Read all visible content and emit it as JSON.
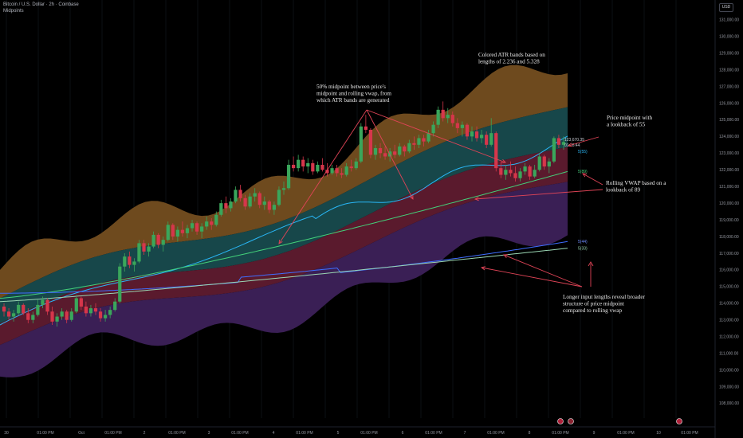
{
  "header": {
    "symbol_line": "Bitcoin / U.S. Dollar · 2h · Coinbase",
    "indicator": "Midpoints"
  },
  "currency": "USD",
  "chart_data": {
    "type": "candlestick",
    "y_ticks": [
      "131,000.00",
      "130,000.00",
      "129,000.00",
      "128,000.00",
      "127,000.00",
      "126,000.00",
      "125,000.00",
      "124,000.00",
      "123,000.00",
      "122,000.00",
      "121,000.00",
      "120,000.00",
      "119,000.00",
      "118,000.00",
      "117,000.00",
      "116,000.00",
      "115,000.00",
      "114,000.00",
      "113,000.00",
      "112,000.00",
      "111,000.00",
      "110,000.00",
      "109,000.00",
      "108,000.00"
    ],
    "ylim": [
      107400,
      131800
    ],
    "x_ticks": [
      "30",
      "01:00 PM",
      "Oct",
      "01:00 PM",
      "2",
      "01:00 PM",
      "3",
      "01:00 PM",
      "4",
      "01:00 PM",
      "5",
      "01:00 PM",
      "6",
      "01:00 PM",
      "7",
      "01:00 PM",
      "8",
      "01:00 PM",
      "9",
      "01:00 PM",
      "10",
      "01:00 PM"
    ],
    "price_labels": {
      "last_price": "123,670.35",
      "countdown": "01:26:44",
      "midpoint_55": "5(55)",
      "vwap_89": "5(89)",
      "midpoint_long": "5(44)",
      "vwap_long": "5(33)"
    },
    "annotations": [
      {
        "lines": [
          "Colored ATR bands based on",
          "lengths of 2.236 and 5.328"
        ]
      },
      {
        "lines": [
          "50% midpoint between price's",
          "midpoint and rolling vwap, from",
          "which ATR bands are generated"
        ]
      },
      {
        "lines": [
          "Price midpoint with",
          "a lookback of 55"
        ]
      },
      {
        "lines": [
          "Rolling VWAP based on a",
          "lookback of 89"
        ]
      },
      {
        "lines": [
          "Longer input lengths reveal broader",
          "structure of price midpoint",
          "compared to rolling vwap"
        ]
      }
    ],
    "candles_ohlc": [
      [
        113800,
        114000,
        113200,
        113500
      ],
      [
        113500,
        113700,
        113000,
        113200
      ],
      [
        113200,
        113600,
        112900,
        113400
      ],
      [
        113400,
        114100,
        113300,
        113900
      ],
      [
        113900,
        114000,
        113300,
        113400
      ],
      [
        113400,
        113700,
        112800,
        113000
      ],
      [
        113000,
        113500,
        112800,
        113300
      ],
      [
        113300,
        114200,
        113200,
        113900
      ],
      [
        113900,
        114400,
        113700,
        114200
      ],
      [
        114200,
        114300,
        113300,
        113500
      ],
      [
        113500,
        113800,
        112700,
        112900
      ],
      [
        112900,
        113400,
        112600,
        113200
      ],
      [
        113200,
        113700,
        113000,
        113500
      ],
      [
        113500,
        113600,
        112800,
        113000
      ],
      [
        113000,
        113700,
        112900,
        113500
      ],
      [
        113500,
        114500,
        113400,
        114300
      ],
      [
        114300,
        114400,
        113600,
        113800
      ],
      [
        113800,
        114100,
        113200,
        113400
      ],
      [
        113400,
        113900,
        113200,
        113700
      ],
      [
        113700,
        114000,
        113300,
        113500
      ],
      [
        113500,
        113700,
        112900,
        113100
      ],
      [
        113100,
        113600,
        112900,
        113300
      ],
      [
        113300,
        113800,
        113100,
        113600
      ],
      [
        113600,
        114300,
        113500,
        114100
      ],
      [
        114100,
        116400,
        114000,
        116200
      ],
      [
        116200,
        117000,
        115900,
        116800
      ],
      [
        116800,
        117100,
        116100,
        116300
      ],
      [
        116300,
        116700,
        115900,
        116500
      ],
      [
        116500,
        117800,
        116400,
        117600
      ],
      [
        117600,
        117800,
        116900,
        117100
      ],
      [
        117100,
        117600,
        116800,
        117400
      ],
      [
        117400,
        118300,
        117300,
        118100
      ],
      [
        118100,
        118200,
        117300,
        117500
      ],
      [
        117500,
        118000,
        117100,
        117800
      ],
      [
        117800,
        118900,
        117700,
        118700
      ],
      [
        118700,
        118800,
        117800,
        118000
      ],
      [
        118000,
        118600,
        117700,
        118400
      ],
      [
        118400,
        118900,
        118000,
        118200
      ],
      [
        118200,
        118700,
        117900,
        118500
      ],
      [
        118500,
        119000,
        118300,
        118800
      ],
      [
        118800,
        118900,
        118100,
        118300
      ],
      [
        118300,
        118800,
        117900,
        118600
      ],
      [
        118600,
        119200,
        118400,
        118900
      ],
      [
        118900,
        119100,
        118400,
        118700
      ],
      [
        118700,
        119500,
        118600,
        119300
      ],
      [
        119300,
        120200,
        119200,
        120000
      ],
      [
        120000,
        120400,
        119400,
        119700
      ],
      [
        119700,
        120300,
        119500,
        120100
      ],
      [
        120100,
        121000,
        120000,
        120800
      ],
      [
        120800,
        121100,
        120100,
        120300
      ],
      [
        120300,
        120500,
        119600,
        119800
      ],
      [
        119800,
        120600,
        119700,
        120400
      ],
      [
        120400,
        120900,
        120100,
        120600
      ],
      [
        120600,
        120700,
        119700,
        119900
      ],
      [
        119900,
        120400,
        119600,
        120100
      ],
      [
        120100,
        120200,
        119400,
        119600
      ],
      [
        119600,
        120100,
        119300,
        119900
      ],
      [
        119900,
        121000,
        119800,
        120800
      ],
      [
        120800,
        121300,
        120500,
        120900
      ],
      [
        120900,
        122600,
        120800,
        122300
      ],
      [
        122300,
        122800,
        121900,
        122100
      ],
      [
        122100,
        122900,
        121900,
        122600
      ],
      [
        122600,
        122800,
        121900,
        122200
      ],
      [
        122200,
        122700,
        121800,
        122400
      ],
      [
        122400,
        122600,
        121700,
        121900
      ],
      [
        121900,
        122500,
        121800,
        122300
      ],
      [
        122300,
        122700,
        121900,
        122000
      ],
      [
        122000,
        122400,
        121600,
        121800
      ],
      [
        121800,
        122300,
        121700,
        122100
      ],
      [
        122100,
        122300,
        121600,
        121800
      ],
      [
        121800,
        122100,
        121500,
        121700
      ],
      [
        121700,
        122400,
        121600,
        122200
      ],
      [
        122200,
        122600,
        121900,
        122100
      ],
      [
        122100,
        122700,
        122000,
        122500
      ],
      [
        122500,
        124800,
        122400,
        124600
      ],
      [
        124600,
        125300,
        124200,
        124400
      ],
      [
        124400,
        124500,
        122700,
        122900
      ],
      [
        122900,
        123500,
        122600,
        123300
      ],
      [
        123300,
        123600,
        122700,
        123000
      ],
      [
        123000,
        123400,
        122600,
        122800
      ],
      [
        122800,
        123300,
        122500,
        123100
      ],
      [
        123100,
        123500,
        122700,
        122900
      ],
      [
        122900,
        123600,
        122800,
        123400
      ],
      [
        123400,
        123500,
        122800,
        123100
      ],
      [
        123100,
        123800,
        123000,
        123600
      ],
      [
        123600,
        124000,
        123200,
        123500
      ],
      [
        123500,
        124100,
        123300,
        123900
      ],
      [
        123900,
        124100,
        123400,
        123700
      ],
      [
        123700,
        124400,
        123600,
        124200
      ],
      [
        124200,
        124900,
        124000,
        124700
      ],
      [
        124700,
        125800,
        124500,
        125600
      ],
      [
        125600,
        126100,
        124900,
        125100
      ],
      [
        125100,
        125700,
        124800,
        125300
      ],
      [
        125300,
        125500,
        124600,
        124800
      ],
      [
        124800,
        125100,
        124200,
        124500
      ],
      [
        124500,
        124900,
        124000,
        124700
      ],
      [
        124700,
        124800,
        123800,
        124000
      ],
      [
        124000,
        124600,
        123700,
        124300
      ],
      [
        124300,
        124600,
        123700,
        123900
      ],
      [
        123900,
        124400,
        123600,
        124100
      ],
      [
        124100,
        124300,
        123300,
        123500
      ],
      [
        123500,
        125100,
        123400,
        124200
      ],
      [
        124200,
        124300,
        121900,
        122100
      ],
      [
        122100,
        122500,
        121500,
        121700
      ],
      [
        121700,
        122300,
        121400,
        122000
      ],
      [
        122000,
        122500,
        121600,
        121800
      ],
      [
        121800,
        122200,
        121300,
        121500
      ],
      [
        121500,
        122100,
        121300,
        121900
      ],
      [
        121900,
        122400,
        121700,
        122200
      ],
      [
        122200,
        122300,
        121400,
        121600
      ],
      [
        121600,
        122300,
        121500,
        122000
      ],
      [
        122000,
        123000,
        121900,
        122800
      ],
      [
        122800,
        122900,
        122000,
        122200
      ],
      [
        122200,
        122700,
        121800,
        122500
      ],
      [
        122500,
        124000,
        122400,
        123900
      ],
      [
        123900,
        124100,
        123300,
        123500
      ],
      [
        123500,
        124000,
        123200,
        123670.35
      ]
    ],
    "series": [
      {
        "values_start_end": [
          112700,
          123700
        ],
        "color": "#29b6f6"
      },
      {
        "values_start_end": [
          114300,
          121900
        ],
        "color": "#43d17a"
      },
      {
        "values_start_end": [
          114600,
          117700
        ],
        "color": "#3f6dff"
      },
      {
        "values_start_end": [
          114100,
          117300
        ],
        "color": "#9ad6b3"
      }
    ]
  }
}
